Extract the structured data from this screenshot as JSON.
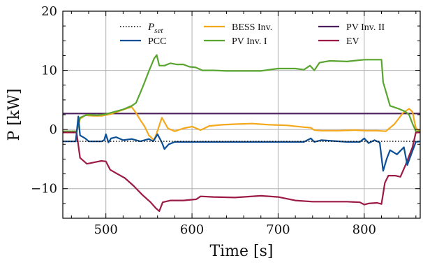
{
  "chart_data": {
    "type": "line",
    "xlabel": "Time [s]",
    "ylabel": "P [kW]",
    "xlim": [
      450,
      865
    ],
    "ylim": [
      -15,
      20
    ],
    "xticks": [
      500,
      600,
      700,
      800
    ],
    "yticks": [
      -10,
      0,
      10,
      20
    ],
    "xtick_labels": [
      "500",
      "600",
      "700",
      "800"
    ],
    "ytick_labels": [
      "−10",
      "0",
      "10",
      "20"
    ],
    "grid": true,
    "legend_position": "top, inside, 3 columns",
    "series": [
      {
        "name": "P_set",
        "label_main": "P",
        "label_sub": "set",
        "color": "#000000",
        "style": "dotted",
        "points": [
          [
            450,
            -2
          ],
          [
            865,
            -2
          ]
        ]
      },
      {
        "name": "PCC",
        "color": "#0b4f96",
        "style": "solid",
        "points": [
          [
            450,
            -2
          ],
          [
            465,
            -2
          ],
          [
            468,
            2.2
          ],
          [
            470,
            -1
          ],
          [
            476,
            -1.5
          ],
          [
            480,
            -2
          ],
          [
            490,
            -2
          ],
          [
            495,
            -2
          ],
          [
            498,
            -1.8
          ],
          [
            500,
            -0.8
          ],
          [
            503,
            -2.2
          ],
          [
            506,
            -1.5
          ],
          [
            512,
            -1.3
          ],
          [
            520,
            -1.8
          ],
          [
            530,
            -1.6
          ],
          [
            540,
            -2
          ],
          [
            550,
            -1.6
          ],
          [
            555,
            -2
          ],
          [
            560,
            -0.8
          ],
          [
            565,
            -2.2
          ],
          [
            568,
            -3.3
          ],
          [
            573,
            -2.5
          ],
          [
            580,
            -2.1
          ],
          [
            600,
            -2.1
          ],
          [
            650,
            -2.1
          ],
          [
            700,
            -2.1
          ],
          [
            730,
            -2.1
          ],
          [
            738,
            -1.5
          ],
          [
            742,
            -2.1
          ],
          [
            750,
            -1.8
          ],
          [
            780,
            -2.1
          ],
          [
            795,
            -2.1
          ],
          [
            800,
            -1.5
          ],
          [
            805,
            -2.3
          ],
          [
            812,
            -1.8
          ],
          [
            818,
            -2.2
          ],
          [
            822,
            -7
          ],
          [
            826,
            -5
          ],
          [
            830,
            -3.5
          ],
          [
            838,
            -4.2
          ],
          [
            846,
            -3
          ],
          [
            850,
            -6
          ],
          [
            855,
            -4
          ],
          [
            860,
            -2.1
          ],
          [
            865,
            -2
          ]
        ]
      },
      {
        "name": "BESS Inv.",
        "color": "#f4a81c",
        "style": "solid",
        "points": [
          [
            450,
            -0.5
          ],
          [
            466,
            -0.5
          ],
          [
            470,
            1.8
          ],
          [
            476,
            2.4
          ],
          [
            485,
            2.3
          ],
          [
            495,
            2.3
          ],
          [
            505,
            2.6
          ],
          [
            515,
            3.1
          ],
          [
            525,
            3.6
          ],
          [
            530,
            3.8
          ],
          [
            535,
            2.8
          ],
          [
            540,
            1.6
          ],
          [
            545,
            0.5
          ],
          [
            550,
            -1
          ],
          [
            556,
            -1.8
          ],
          [
            560,
            -0.2
          ],
          [
            565,
            2.0
          ],
          [
            572,
            0.2
          ],
          [
            580,
            -0.3
          ],
          [
            590,
            0.2
          ],
          [
            600,
            0.5
          ],
          [
            610,
            -0.1
          ],
          [
            620,
            0.6
          ],
          [
            635,
            0.8
          ],
          [
            650,
            0.9
          ],
          [
            670,
            1.0
          ],
          [
            690,
            0.8
          ],
          [
            710,
            0.7
          ],
          [
            730,
            0.4
          ],
          [
            738,
            0.3
          ],
          [
            742,
            -0.1
          ],
          [
            750,
            -0.2
          ],
          [
            770,
            -0.2
          ],
          [
            790,
            -0.1
          ],
          [
            800,
            -0.2
          ],
          [
            815,
            -0.2
          ],
          [
            825,
            -0.3
          ],
          [
            835,
            0.9
          ],
          [
            845,
            2.8
          ],
          [
            852,
            3.5
          ],
          [
            856,
            3.0
          ],
          [
            860,
            0.2
          ],
          [
            865,
            -0.3
          ]
        ]
      },
      {
        "name": "PV Inv. I",
        "color": "#5aa52f",
        "style": "solid",
        "points": [
          [
            450,
            -0.3
          ],
          [
            466,
            -0.3
          ],
          [
            470,
            2.0
          ],
          [
            478,
            2.5
          ],
          [
            490,
            2.4
          ],
          [
            500,
            2.6
          ],
          [
            510,
            3.0
          ],
          [
            520,
            3.4
          ],
          [
            530,
            4.0
          ],
          [
            535,
            4.5
          ],
          [
            540,
            6.2
          ],
          [
            545,
            8.0
          ],
          [
            550,
            9.9
          ],
          [
            556,
            12.0
          ],
          [
            559,
            12.6
          ],
          [
            562,
            10.8
          ],
          [
            568,
            10.8
          ],
          [
            575,
            11.2
          ],
          [
            582,
            11.0
          ],
          [
            590,
            11.0
          ],
          [
            597,
            10.6
          ],
          [
            604,
            10.5
          ],
          [
            612,
            10.0
          ],
          [
            625,
            10.0
          ],
          [
            640,
            9.9
          ],
          [
            660,
            9.9
          ],
          [
            680,
            9.9
          ],
          [
            700,
            10.3
          ],
          [
            720,
            10.3
          ],
          [
            730,
            10.1
          ],
          [
            737,
            10.8
          ],
          [
            742,
            10.0
          ],
          [
            748,
            11.3
          ],
          [
            760,
            11.6
          ],
          [
            780,
            11.5
          ],
          [
            800,
            11.8
          ],
          [
            820,
            11.8
          ],
          [
            822,
            8
          ],
          [
            826,
            6
          ],
          [
            830,
            4
          ],
          [
            840,
            3.5
          ],
          [
            848,
            3.0
          ],
          [
            852,
            2.5
          ],
          [
            856,
            1.0
          ],
          [
            860,
            -0.3
          ],
          [
            865,
            -0.3
          ]
        ]
      },
      {
        "name": "PV Inv. II",
        "color": "#4a1f5c",
        "style": "solid",
        "points": [
          [
            450,
            2.7
          ],
          [
            865,
            2.7
          ]
        ]
      },
      {
        "name": "EV",
        "color": "#9c1b44",
        "style": "solid",
        "points": [
          [
            450,
            -0.5
          ],
          [
            466,
            -0.5
          ],
          [
            470,
            -4.8
          ],
          [
            478,
            -5.8
          ],
          [
            488,
            -5.5
          ],
          [
            495,
            -5.3
          ],
          [
            500,
            -5.4
          ],
          [
            505,
            -6.8
          ],
          [
            512,
            -7.4
          ],
          [
            522,
            -8.2
          ],
          [
            532,
            -9.5
          ],
          [
            542,
            -11
          ],
          [
            552,
            -12.3
          ],
          [
            558,
            -13.3
          ],
          [
            562,
            -13.8
          ],
          [
            566,
            -12.3
          ],
          [
            575,
            -12
          ],
          [
            590,
            -12
          ],
          [
            605,
            -11.8
          ],
          [
            610,
            -11.3
          ],
          [
            625,
            -11.4
          ],
          [
            650,
            -11.5
          ],
          [
            680,
            -11.2
          ],
          [
            700,
            -11.4
          ],
          [
            720,
            -12
          ],
          [
            740,
            -12.2
          ],
          [
            760,
            -12.2
          ],
          [
            780,
            -12.2
          ],
          [
            795,
            -12.3
          ],
          [
            800,
            -12.7
          ],
          [
            805,
            -12.5
          ],
          [
            815,
            -12.4
          ],
          [
            820,
            -12.6
          ],
          [
            824,
            -9
          ],
          [
            828,
            -7.8
          ],
          [
            836,
            -7.8
          ],
          [
            842,
            -8
          ],
          [
            848,
            -6
          ],
          [
            856,
            -3
          ],
          [
            860,
            -0.5
          ],
          [
            865,
            -0.5
          ]
        ]
      }
    ]
  }
}
